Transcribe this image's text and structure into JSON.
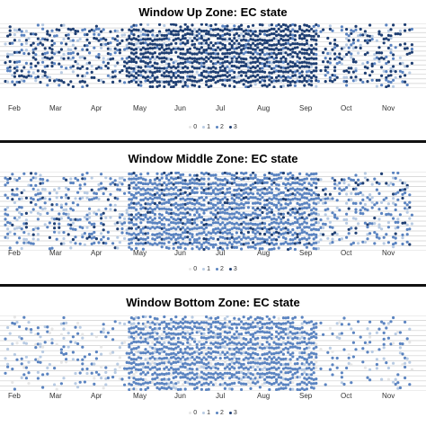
{
  "chart_data": [
    {
      "type": "scatter",
      "title": "Window Up Zone: EC state",
      "x_ticks": [
        "Feb",
        "Mar",
        "Apr",
        "May",
        "Jun",
        "Jul",
        "Aug",
        "Sep",
        "Oct",
        "Nov"
      ],
      "legend": [
        "0",
        "1",
        "2",
        "3"
      ],
      "legend_placement": "bottom",
      "grid": true,
      "dominant_state": "3",
      "active_range": [
        "Feb",
        "Nov"
      ],
      "dense_range": [
        "May",
        "Sep"
      ]
    },
    {
      "type": "scatter",
      "title": "Window Middle Zone: EC state",
      "x_ticks": [
        "Feb",
        "Mar",
        "Apr",
        "May",
        "Jun",
        "Jul",
        "Aug",
        "Sep",
        "Oct",
        "Nov"
      ],
      "legend": [
        "0",
        "1",
        "2",
        "3"
      ],
      "legend_placement": "bottom",
      "grid": true,
      "dominant_state": "2",
      "active_range": [
        "Feb",
        "Nov"
      ],
      "dense_range": [
        "May",
        "Sep"
      ]
    },
    {
      "type": "scatter",
      "title": "Window Bottom Zone: EC state",
      "x_ticks": [
        "Feb",
        "Mar",
        "Apr",
        "May",
        "Jun",
        "Jul",
        "Aug",
        "Sep",
        "Oct",
        "Nov"
      ],
      "legend": [
        "0",
        "1",
        "2",
        "3"
      ],
      "legend_placement": "bottom",
      "grid": true,
      "dominant_state": "2",
      "active_range": [
        "Feb",
        "Nov"
      ],
      "dense_range": [
        "May",
        "Sep"
      ]
    }
  ],
  "colors": {
    "state_0": "#e6e6e6",
    "state_1": "#b8cbe3",
    "state_2": "#5b84c1",
    "state_3": "#1f3f73",
    "grid": "#cfcfcf"
  }
}
